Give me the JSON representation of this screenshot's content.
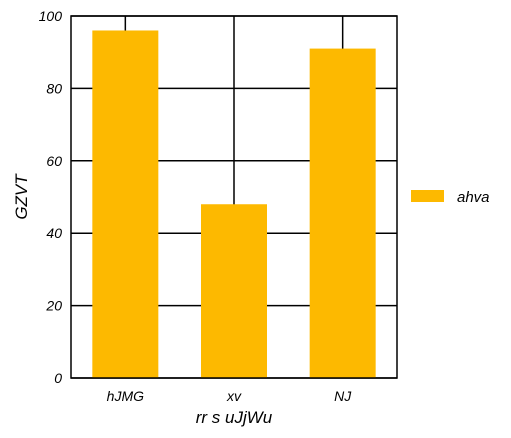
{
  "chart_data": {
    "type": "bar",
    "categories": [
      "hJMG",
      "xv",
      "NJ"
    ],
    "series": [
      {
        "name": "ahva",
        "values": [
          96,
          48,
          91
        ],
        "color": "#fdb900"
      }
    ],
    "xlabel": "rr s uJjWu",
    "ylabel": "GZVT",
    "ylim": [
      0,
      100
    ],
    "yticks": [
      0,
      20,
      40,
      60,
      80,
      100
    ],
    "grid": true,
    "legend_position": "right"
  }
}
